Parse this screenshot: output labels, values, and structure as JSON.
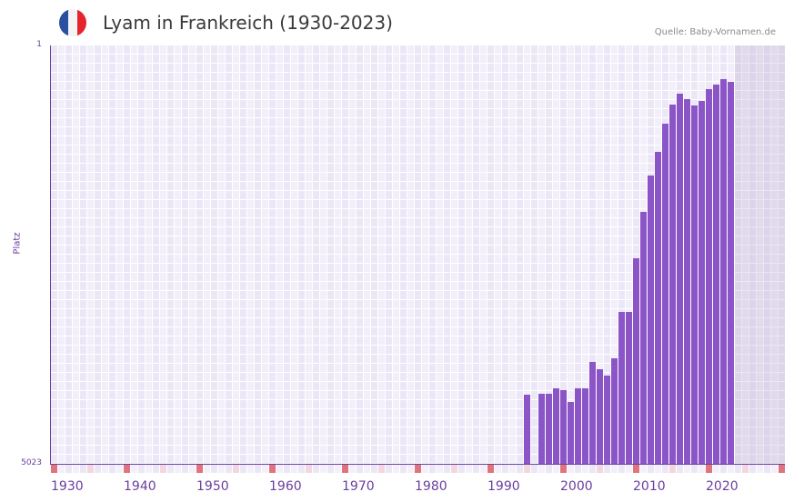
{
  "header": {
    "title": "Lyam in Frankreich (1930-2023)",
    "source": "Quelle: Baby-Vornamen.de",
    "flag_icon": "france-flag-icon",
    "flag_colors": [
      "#2a4ea0",
      "#f4f4f6",
      "#e5252c"
    ]
  },
  "axes": {
    "y_top_label": "1",
    "y_bottom_label": "5023",
    "y_title": "Platz",
    "x_labels": [
      "1930",
      "1940",
      "1950",
      "1960",
      "1970",
      "1980",
      "1990",
      "2000",
      "2010",
      "2020"
    ]
  },
  "colors": {
    "bar": "#8b55c8",
    "axis": "#6a3f9e",
    "decade_tick": "#e0747c",
    "half_decade_tick": "#f4d6de",
    "year_tick_a": "#ece7f7",
    "year_tick_b": "#f4f0fb"
  },
  "chart_data": {
    "type": "bar",
    "title": "Lyam in Frankreich (1930-2023)",
    "xlabel": "",
    "ylabel": "Platz",
    "y_axis_inverted": true,
    "ylim": [
      1,
      5023
    ],
    "xlim": [
      1930,
      2030
    ],
    "grid": true,
    "shaded_future_from": 2024,
    "x": [
      1995,
      1997,
      1998,
      1999,
      2000,
      2001,
      2002,
      2003,
      2004,
      2005,
      2006,
      2007,
      2008,
      2009,
      2010,
      2011,
      2012,
      2013,
      2014,
      2015,
      2016,
      2017,
      2018,
      2019,
      2020,
      2021,
      2022,
      2023
    ],
    "values": [
      4193,
      4182,
      4182,
      4117,
      4139,
      4281,
      4117,
      4117,
      3800,
      3888,
      3964,
      3757,
      3200,
      3200,
      2556,
      1999,
      1562,
      1278,
      940,
      711,
      580,
      645,
      722,
      667,
      525,
      470,
      405,
      438
    ],
    "series": [
      {
        "name": "Platz (Rang)",
        "values": [
          4193,
          4182,
          4182,
          4117,
          4139,
          4281,
          4117,
          4117,
          3800,
          3888,
          3964,
          3757,
          3200,
          3200,
          2556,
          1999,
          1562,
          1278,
          940,
          711,
          580,
          645,
          722,
          667,
          525,
          470,
          405,
          438
        ]
      }
    ],
    "source": "Quelle: Baby-Vornamen.de"
  }
}
